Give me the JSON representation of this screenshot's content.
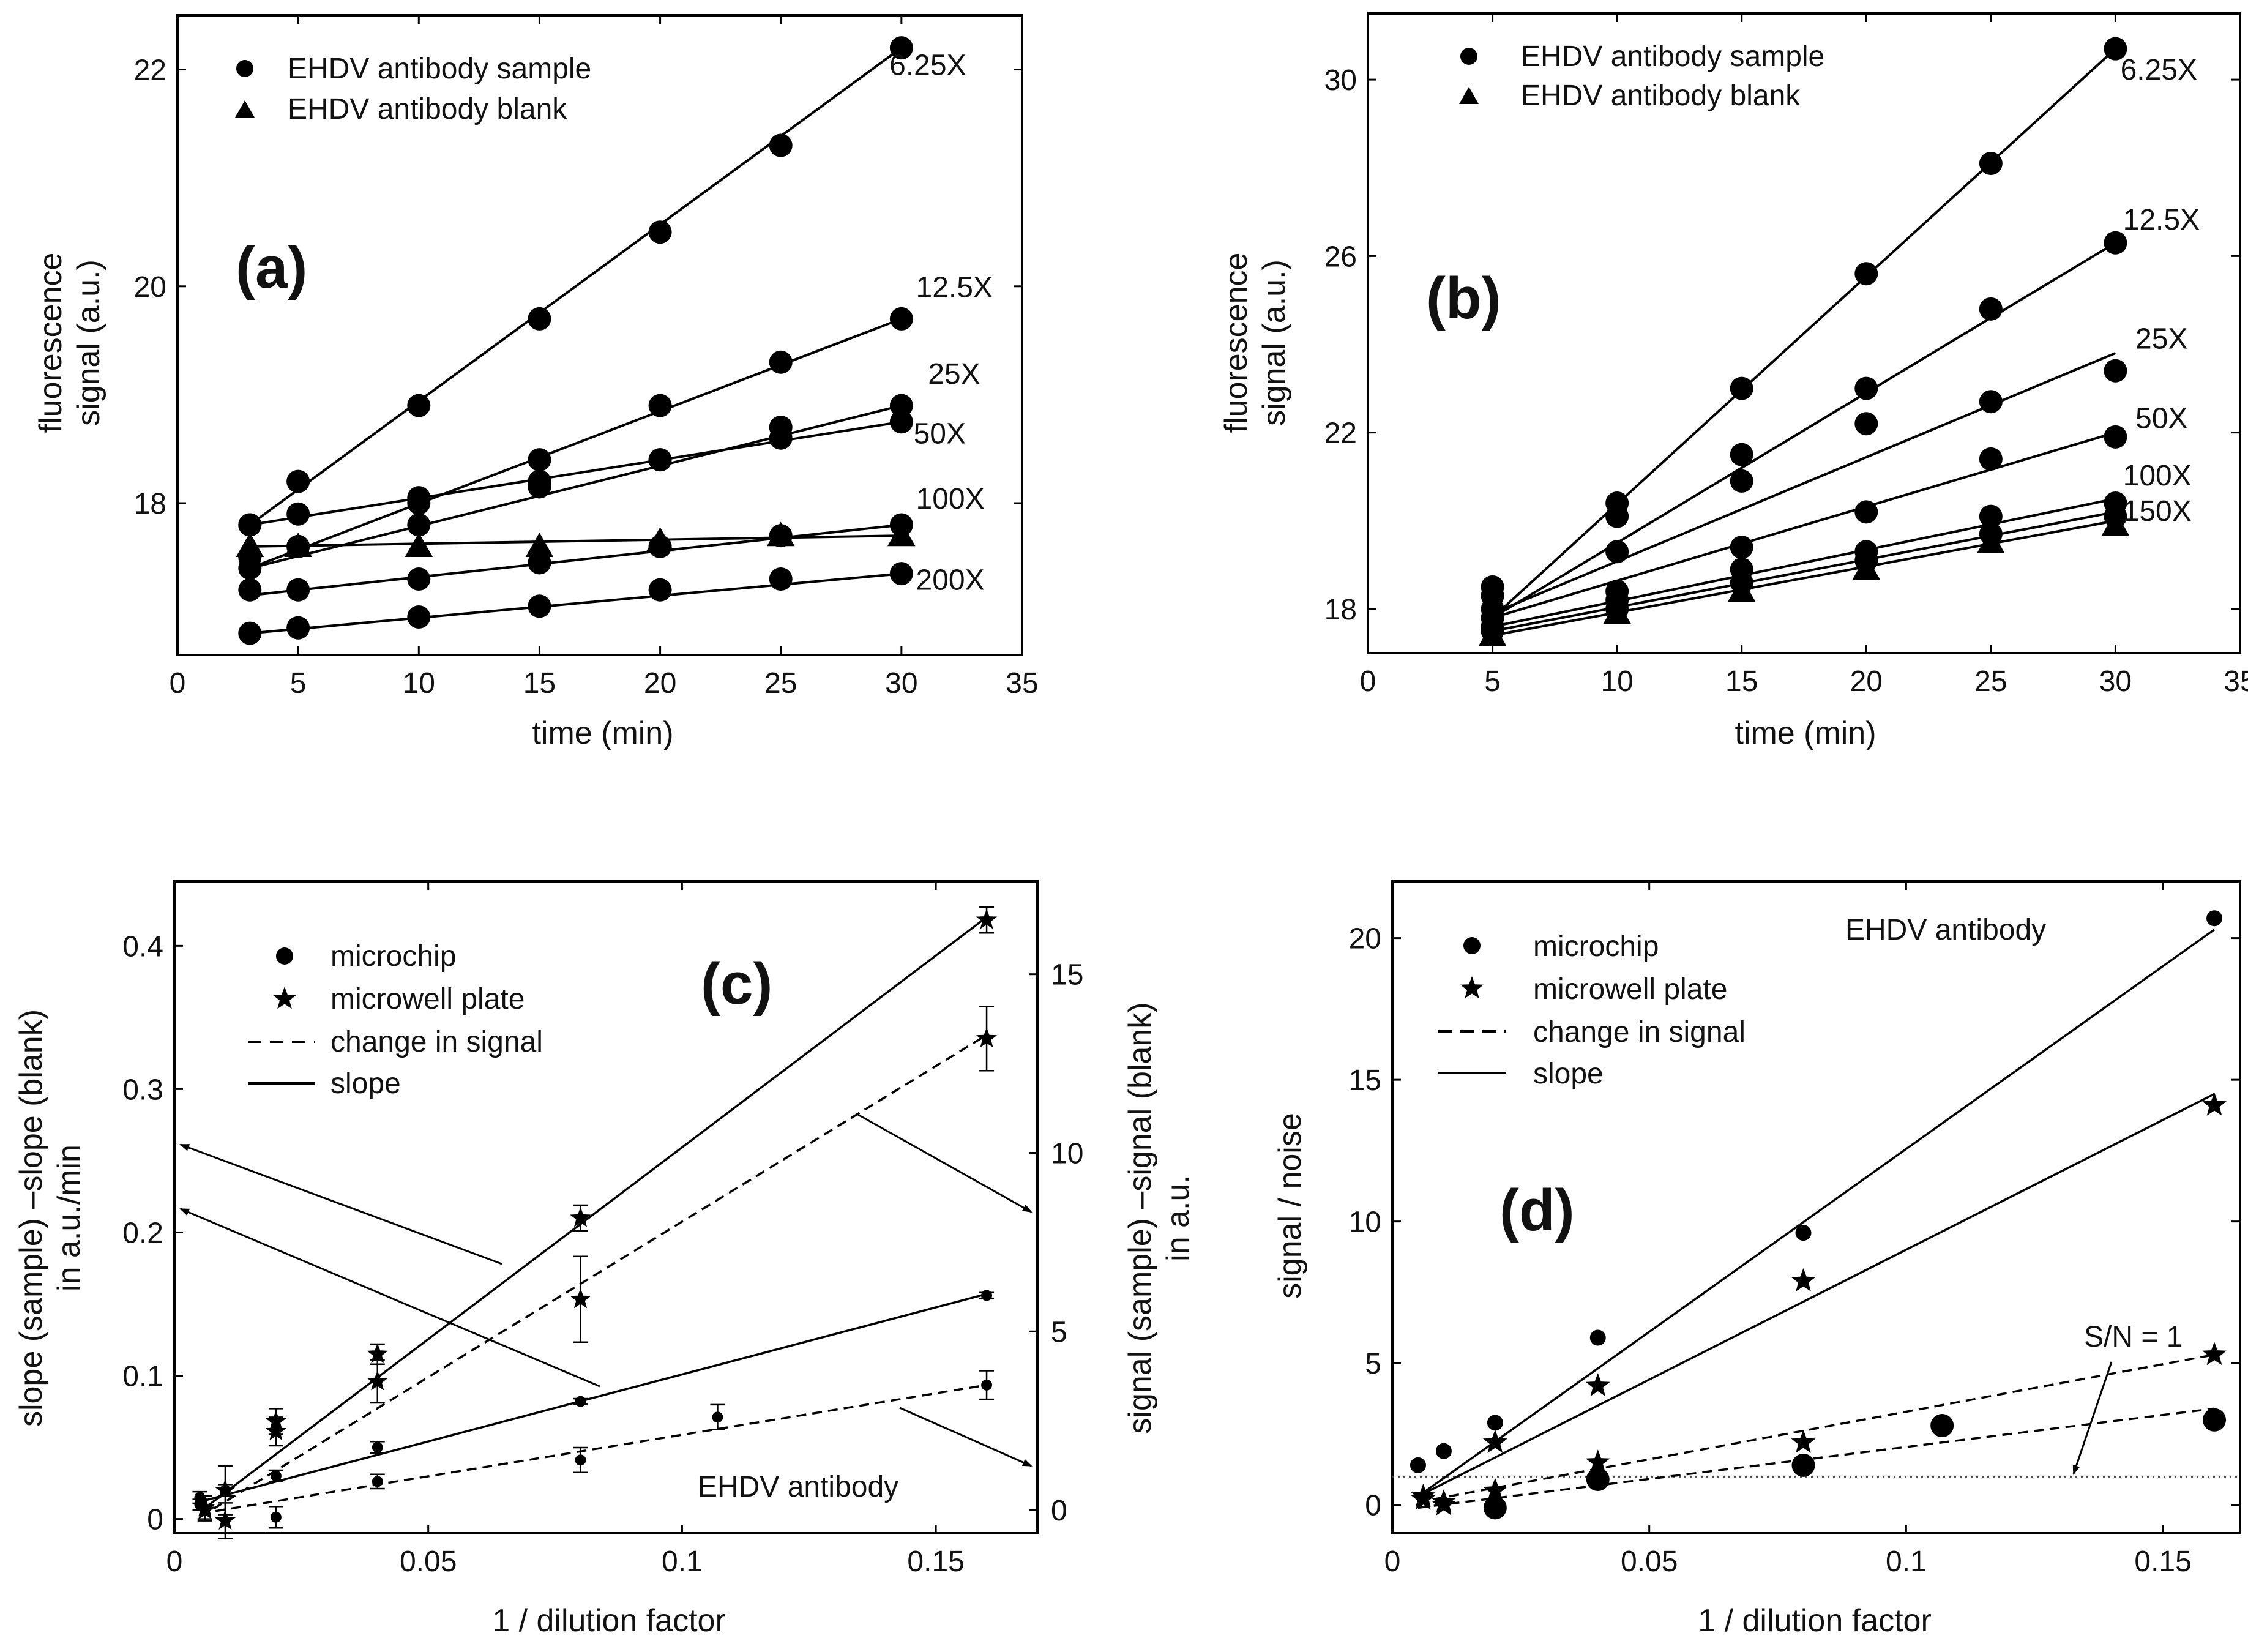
{
  "chart_data": [
    {
      "id": "a",
      "type": "scatter",
      "panel_label": "(a)",
      "xlabel": "time (min)",
      "ylabel_lines": [
        "fluorescence",
        "signal (a.u.)"
      ],
      "xlim": [
        0,
        35
      ],
      "ylim": [
        16.6,
        22.5
      ],
      "xticks": [
        0,
        5,
        10,
        15,
        20,
        25,
        30,
        35
      ],
      "yticks": [
        18,
        20,
        22
      ],
      "legend": [
        {
          "marker": "circle",
          "label": "EHDV antibody sample"
        },
        {
          "marker": "triangle",
          "label": "EHDV antibody blank"
        }
      ],
      "series": [
        {
          "name": "6.25X",
          "marker": "circle",
          "x": [
            3,
            5,
            10,
            15,
            20,
            25,
            30
          ],
          "y": [
            17.8,
            18.2,
            18.9,
            19.7,
            20.5,
            21.3,
            22.2
          ],
          "fit": [
            [
              3,
              17.8
            ],
            [
              30,
              22.2
            ]
          ]
        },
        {
          "name": "12.5X",
          "marker": "circle",
          "x": [
            3,
            5,
            10,
            15,
            20,
            25,
            30
          ],
          "y": [
            17.5,
            17.6,
            18.0,
            18.4,
            18.9,
            19.3,
            19.7
          ],
          "fit": [
            [
              3,
              17.4
            ],
            [
              30,
              19.7
            ]
          ]
        },
        {
          "name": "25X",
          "marker": "circle",
          "x": [
            3,
            5,
            10,
            15,
            20,
            25,
            30
          ],
          "y": [
            17.4,
            17.6,
            17.8,
            18.2,
            18.4,
            18.7,
            18.9
          ],
          "fit": [
            [
              3,
              17.4
            ],
            [
              30,
              18.9
            ]
          ]
        },
        {
          "name": "50X",
          "marker": "circle",
          "x": [
            3,
            5,
            10,
            15,
            20,
            25,
            30
          ],
          "y": [
            17.8,
            17.9,
            18.05,
            18.15,
            18.4,
            18.6,
            18.75
          ],
          "fit": [
            [
              3,
              17.8
            ],
            [
              30,
              18.75
            ]
          ]
        },
        {
          "name": "100X",
          "marker": "circle",
          "x": [
            3,
            5,
            10,
            15,
            20,
            25,
            30
          ],
          "y": [
            17.2,
            17.2,
            17.3,
            17.45,
            17.6,
            17.7,
            17.8
          ],
          "fit": [
            [
              3,
              17.15
            ],
            [
              30,
              17.8
            ]
          ]
        },
        {
          "name": "200X",
          "marker": "circle",
          "x": [
            3,
            5,
            10,
            15,
            20,
            25,
            30
          ],
          "y": [
            16.8,
            16.85,
            16.95,
            17.05,
            17.2,
            17.3,
            17.35
          ],
          "fit": [
            [
              3,
              16.8
            ],
            [
              30,
              17.35
            ]
          ]
        },
        {
          "name": "blank",
          "marker": "triangle",
          "x": [
            3,
            5,
            10,
            15,
            20,
            25,
            30
          ],
          "y": [
            17.6,
            17.6,
            17.6,
            17.6,
            17.65,
            17.7,
            17.7
          ],
          "fit": [
            [
              3,
              17.6
            ],
            [
              30,
              17.7
            ]
          ]
        }
      ],
      "curve_labels": [
        {
          "text": "6.25X",
          "x": 29.5,
          "y": 21.95
        },
        {
          "text": "12.5X",
          "x": 30.6,
          "y": 19.9
        },
        {
          "text": "25X",
          "x": 31.1,
          "y": 19.1
        },
        {
          "text": "50X",
          "x": 30.5,
          "y": 18.55
        },
        {
          "text": "100X",
          "x": 30.6,
          "y": 17.95
        },
        {
          "text": "200X",
          "x": 30.6,
          "y": 17.2
        }
      ]
    },
    {
      "id": "b",
      "type": "scatter",
      "panel_label": "(b)",
      "xlabel": "time (min)",
      "ylabel_lines": [
        "fluorescence",
        "signal (a.u.)"
      ],
      "xlim": [
        0,
        35
      ],
      "ylim": [
        17,
        31.5
      ],
      "xticks": [
        0,
        5,
        10,
        15,
        20,
        25,
        30,
        35
      ],
      "yticks": [
        18,
        22,
        26,
        30
      ],
      "legend": [
        {
          "marker": "circle",
          "label": "EHDV antibody sample"
        },
        {
          "marker": "triangle",
          "label": "EHDV antibody blank"
        }
      ],
      "series": [
        {
          "name": "6.25X",
          "marker": "circle",
          "x": [
            5,
            10,
            15,
            20,
            25,
            30
          ],
          "y": [
            18.5,
            20.4,
            23.0,
            25.6,
            28.1,
            30.7
          ],
          "fit": [
            [
              5,
              17.8
            ],
            [
              30,
              30.7
            ]
          ]
        },
        {
          "name": "12.5X",
          "marker": "circle",
          "x": [
            5,
            10,
            15,
            20,
            25,
            30
          ],
          "y": [
            18.3,
            20.1,
            21.5,
            23.0,
            24.8,
            26.3
          ],
          "fit": [
            [
              5,
              17.8
            ],
            [
              30,
              26.3
            ]
          ]
        },
        {
          "name": "25X",
          "marker": "circle",
          "x": [
            5,
            10,
            15,
            20,
            25,
            30
          ],
          "y": [
            18.0,
            19.3,
            20.9,
            22.2,
            22.7,
            23.4
          ],
          "fit": [
            [
              5,
              17.9
            ],
            [
              30,
              23.8
            ]
          ]
        },
        {
          "name": "50X",
          "marker": "circle",
          "x": [
            5,
            10,
            15,
            20,
            25,
            30
          ],
          "y": [
            17.8,
            18.4,
            19.4,
            20.2,
            21.4,
            21.9
          ],
          "fit": [
            [
              5,
              17.8
            ],
            [
              30,
              22.0
            ]
          ]
        },
        {
          "name": "100X",
          "marker": "circle",
          "x": [
            5,
            10,
            15,
            20,
            25,
            30
          ],
          "y": [
            17.6,
            18.2,
            18.9,
            19.3,
            20.1,
            20.4
          ],
          "fit": [
            [
              5,
              17.6
            ],
            [
              30,
              20.5
            ]
          ]
        },
        {
          "name": "150X",
          "marker": "circle",
          "x": [
            5,
            10,
            15,
            20,
            25,
            30
          ],
          "y": [
            17.5,
            18.0,
            18.6,
            19.1,
            19.7,
            20.1
          ],
          "fit": [
            [
              5,
              17.5
            ],
            [
              30,
              20.2
            ]
          ]
        },
        {
          "name": "blank",
          "marker": "triangle",
          "x": [
            5,
            10,
            15,
            20,
            25,
            30
          ],
          "y": [
            17.4,
            17.9,
            18.4,
            18.9,
            19.5,
            19.9
          ],
          "fit": [
            [
              5,
              17.4
            ],
            [
              30,
              20.0
            ]
          ]
        }
      ],
      "curve_labels": [
        {
          "text": "6.25X",
          "x": 30.2,
          "y": 30.0
        },
        {
          "text": "12.5X",
          "x": 30.3,
          "y": 26.6
        },
        {
          "text": "25X",
          "x": 30.8,
          "y": 23.9
        },
        {
          "text": "50X",
          "x": 30.8,
          "y": 22.1
        },
        {
          "text": "100X",
          "x": 30.3,
          "y": 20.8
        },
        {
          "text": "150X",
          "x": 30.3,
          "y": 20.0
        }
      ]
    },
    {
      "id": "c",
      "type": "scatter",
      "panel_label": "(c)",
      "annotation": "EHDV antibody",
      "xlabel": "1 / dilution factor",
      "ylabel_lines": [
        "slope (sample) –slope (blank)",
        "in a.u./min"
      ],
      "y2label_lines": [
        "signal (sample) –signal (blank)",
        "in a.u."
      ],
      "xlim": [
        0,
        0.17
      ],
      "ylim": [
        -0.01,
        0.445
      ],
      "y2lim": [
        -0.65,
        17.6
      ],
      "xticks": [
        0,
        0.05,
        0.1,
        0.15
      ],
      "xtick_labels": [
        "0",
        "0.05",
        "0.1",
        "0.15"
      ],
      "yticks": [
        0,
        0.1,
        0.2,
        0.3,
        0.4
      ],
      "yticks_right": [
        0,
        5,
        10,
        15
      ],
      "legend": [
        {
          "marker": "circle",
          "label": "microchip"
        },
        {
          "marker": "star",
          "label": "microwell plate"
        },
        {
          "marker": "dash",
          "label": "change in signal"
        },
        {
          "marker": "line",
          "label": "slope"
        }
      ],
      "series": [
        {
          "name": "microchip slope",
          "marker": "circle",
          "axis": "left",
          "x": [
            0.005,
            0.01,
            0.02,
            0.04,
            0.08,
            0.16
          ],
          "y": [
            0.015,
            0.02,
            0.03,
            0.05,
            0.082,
            0.156
          ],
          "err": [
            0.004,
            0.004,
            0.004,
            0.004,
            0.002,
            0.002
          ],
          "fit": [
            [
              0.005,
              0.012
            ],
            [
              0.16,
              0.157
            ]
          ],
          "style": "solid"
        },
        {
          "name": "microwell slope",
          "marker": "star",
          "axis": "left",
          "x": [
            0.006,
            0.01,
            0.02,
            0.04,
            0.08,
            0.16
          ],
          "y": [
            0.008,
            0.02,
            0.068,
            0.115,
            0.21,
            0.418
          ],
          "err": [
            0.008,
            0.017,
            0.009,
            0.007,
            0.009,
            0.009
          ],
          "fit": [
            [
              0.005,
              0.005
            ],
            [
              0.16,
              0.42
            ]
          ],
          "style": "solid"
        },
        {
          "name": "microchip change in signal",
          "marker": "circle",
          "axis": "right",
          "x": [
            0.005,
            0.02,
            0.04,
            0.08,
            0.107,
            0.16
          ],
          "y": [
            0.15,
            -0.2,
            0.8,
            1.4,
            2.6,
            3.5
          ],
          "err": [
            0.15,
            0.3,
            0.2,
            0.35,
            0.35,
            0.4
          ],
          "fit": [
            [
              0.005,
              -0.1
            ],
            [
              0.16,
              3.5
            ]
          ],
          "style": "dashed"
        },
        {
          "name": "microwell change in signal",
          "marker": "star",
          "axis": "right",
          "x": [
            0.006,
            0.01,
            0.02,
            0.04,
            0.08,
            0.16
          ],
          "y": [
            0.0,
            -0.3,
            2.2,
            3.6,
            5.9,
            13.2
          ],
          "err": [
            0.3,
            0.5,
            0.4,
            0.6,
            1.2,
            0.9
          ],
          "fit": [
            [
              0.005,
              -0.2
            ],
            [
              0.16,
              13.3
            ]
          ],
          "style": "dashed"
        }
      ]
    },
    {
      "id": "d",
      "type": "scatter",
      "panel_label": "(d)",
      "annotation": "EHDV antibody",
      "threshold_label": "S/N = 1",
      "xlabel": "1 / dilution factor",
      "ylabel": "signal / noise",
      "xlim": [
        0,
        0.165
      ],
      "ylim": [
        -1,
        22
      ],
      "xticks": [
        0,
        0.05,
        0.1,
        0.15
      ],
      "xtick_labels": [
        "0",
        "0.05",
        "0.1",
        "0.15"
      ],
      "yticks": [
        0,
        5,
        10,
        15,
        20
      ],
      "threshold": 1,
      "legend": [
        {
          "marker": "circle",
          "label": "microchip"
        },
        {
          "marker": "star",
          "label": "microwell plate"
        },
        {
          "marker": "dash",
          "label": "change in signal"
        },
        {
          "marker": "line",
          "label": "slope"
        }
      ],
      "series": [
        {
          "name": "microchip slope",
          "marker": "circle",
          "x": [
            0.005,
            0.01,
            0.02,
            0.04,
            0.08,
            0.16
          ],
          "y": [
            1.4,
            1.9,
            2.9,
            5.9,
            9.6,
            20.7
          ],
          "fit": [
            [
              0.005,
              0.3
            ],
            [
              0.16,
              20.3
            ]
          ],
          "style": "solid"
        },
        {
          "name": "microwell slope",
          "marker": "star",
          "x": [
            0.006,
            0.01,
            0.02,
            0.04,
            0.08,
            0.16
          ],
          "y": [
            0.3,
            0.1,
            2.2,
            4.2,
            7.9,
            14.1
          ],
          "fit": [
            [
              0.005,
              0.3
            ],
            [
              0.16,
              14.5
            ]
          ],
          "style": "solid"
        },
        {
          "name": "microchip change in signal",
          "marker": "circle",
          "x": [
            0.02,
            0.04,
            0.08,
            0.107,
            0.16
          ],
          "y": [
            -0.1,
            0.9,
            1.4,
            2.8,
            3.0
          ],
          "fit": [
            [
              0.005,
              -0.1
            ],
            [
              0.16,
              3.4
            ]
          ],
          "style": "dashed"
        },
        {
          "name": "microwell change in signal",
          "marker": "star",
          "x": [
            0.006,
            0.01,
            0.02,
            0.04,
            0.08,
            0.16
          ],
          "y": [
            0.2,
            0.0,
            0.5,
            1.5,
            2.2,
            5.3
          ],
          "fit": [
            [
              0.005,
              0.1
            ],
            [
              0.16,
              5.3
            ]
          ],
          "style": "dashed"
        }
      ]
    }
  ]
}
